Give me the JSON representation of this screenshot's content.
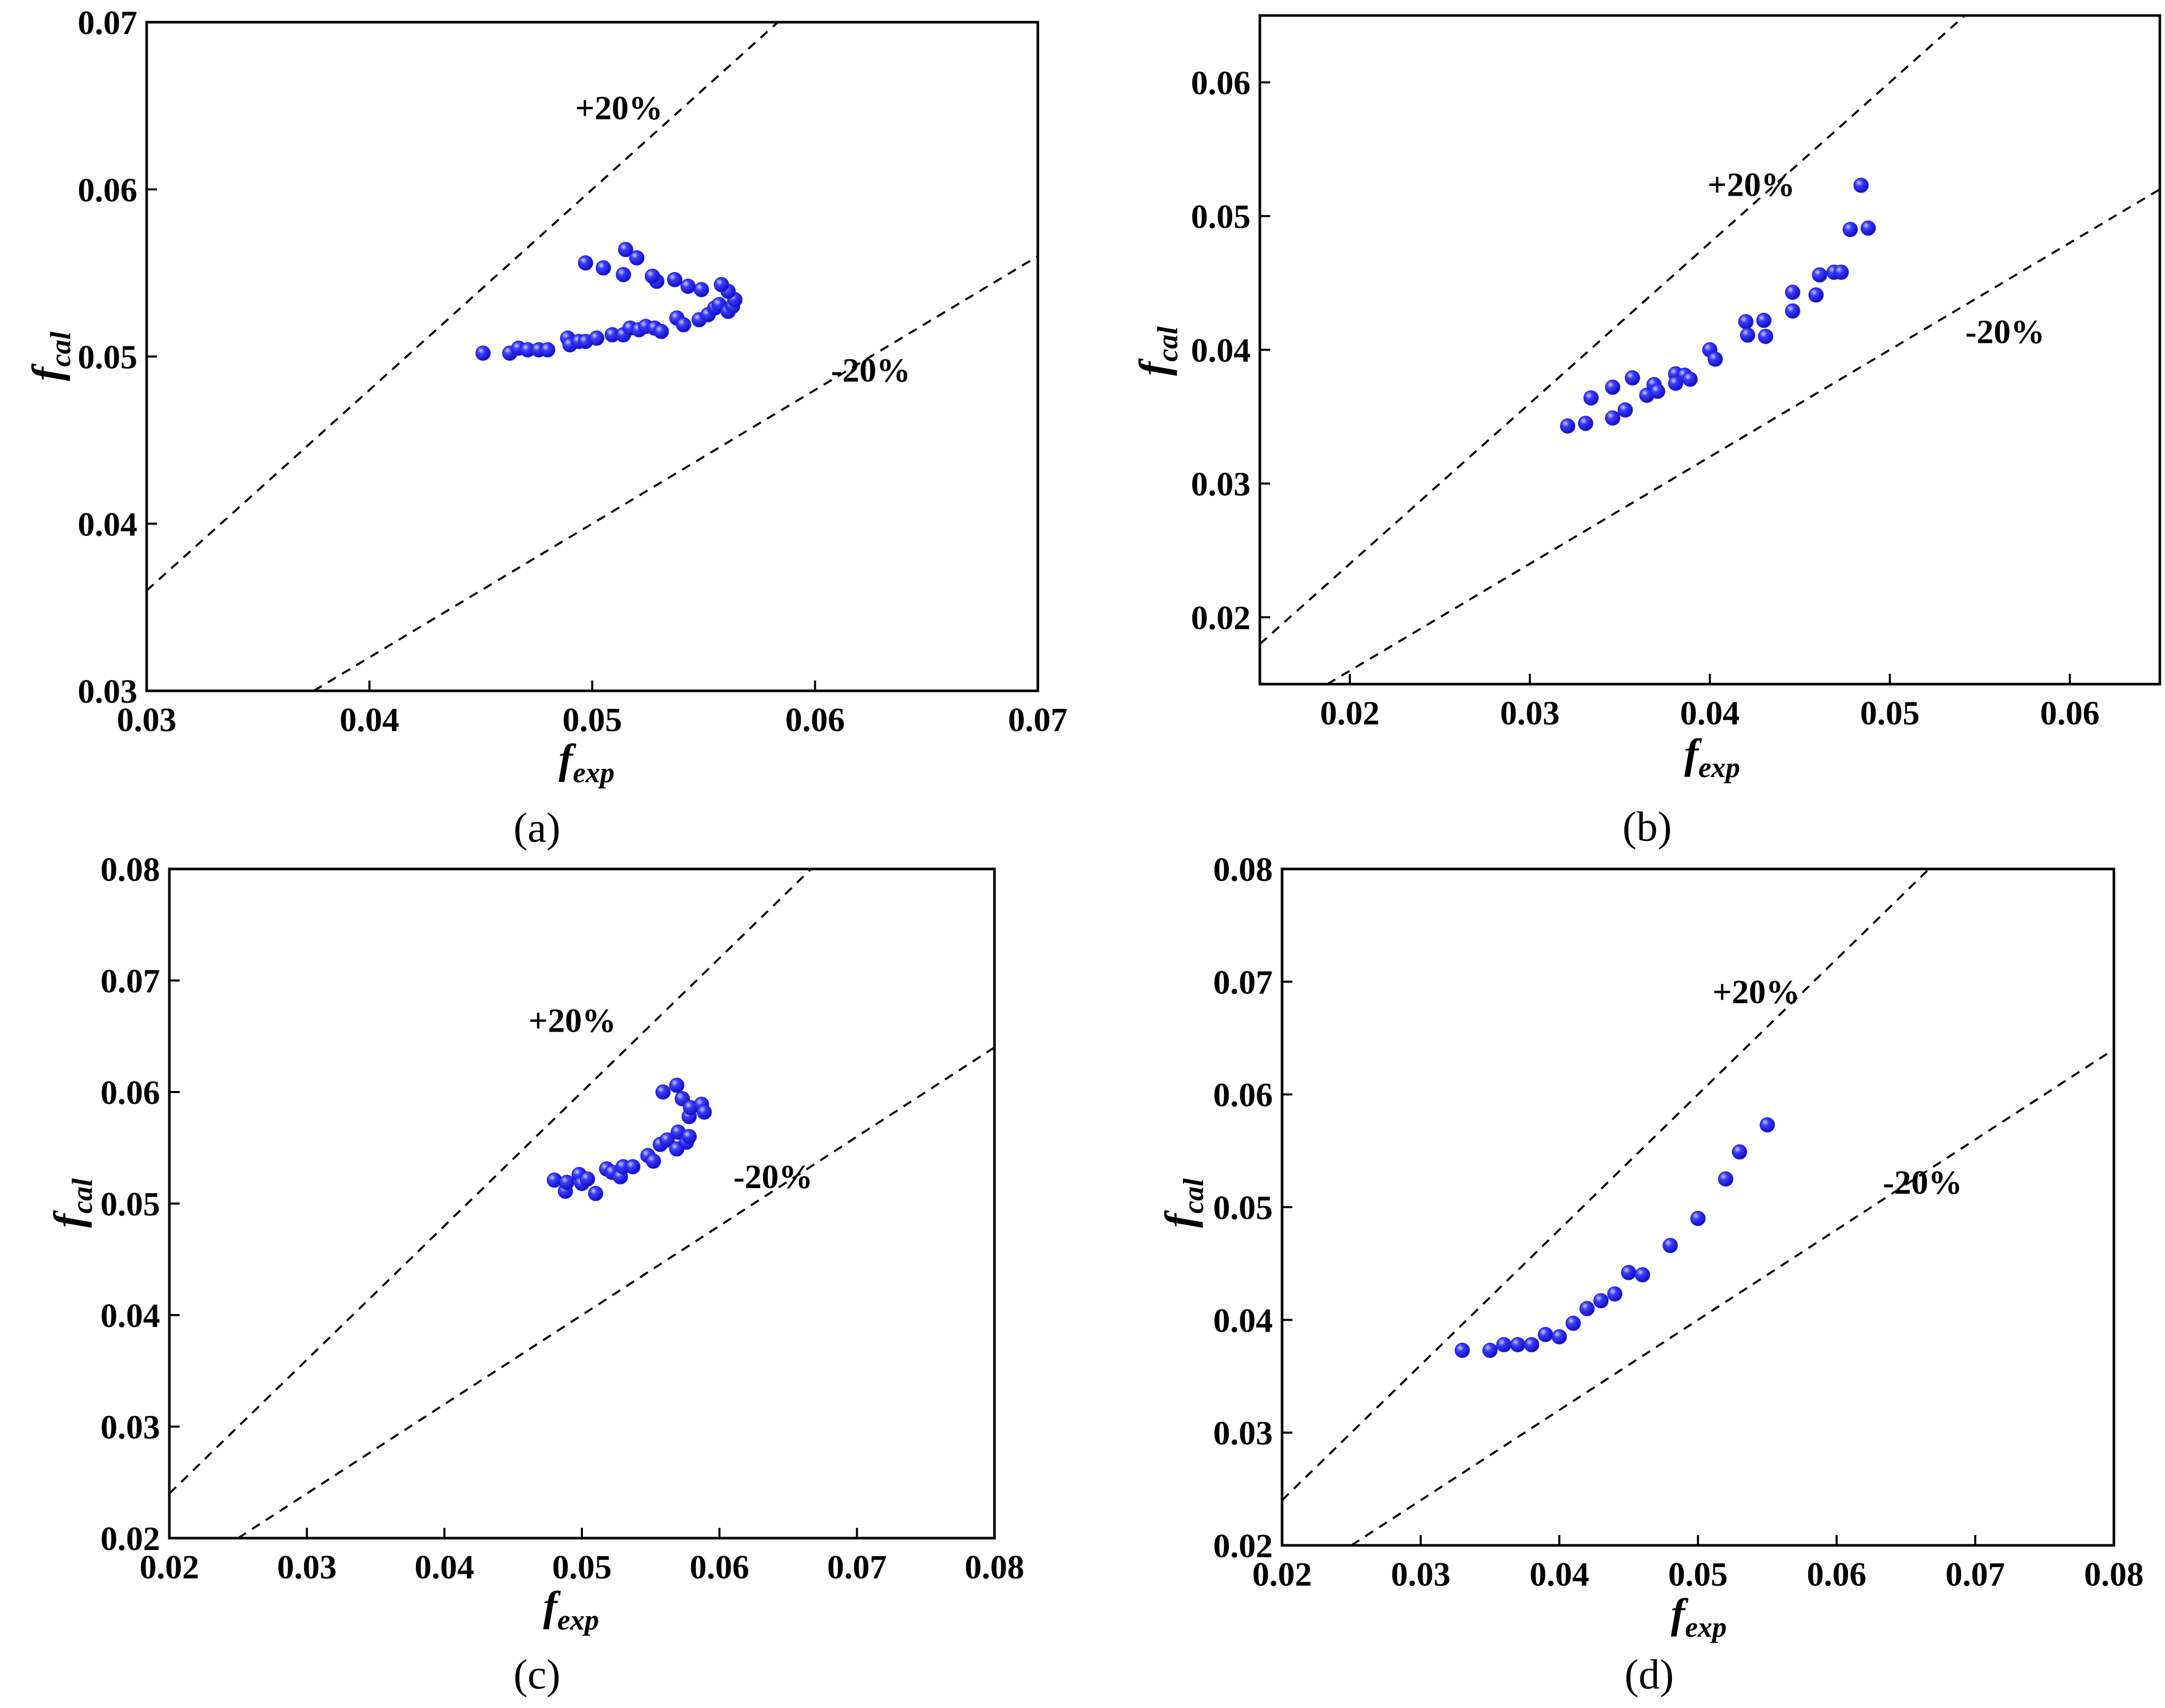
{
  "figure": {
    "panel_labels": [
      "(a)",
      "(b)",
      "(c)",
      "(d)"
    ]
  },
  "colors": {
    "points": "#1f1fe6",
    "point_highlight": "#aab2ff",
    "axes": "#000000",
    "dash": "#000000"
  },
  "chart_data": [
    {
      "type": "scatter",
      "panel": "(a)",
      "xlabel": {
        "main": "f",
        "sub": "exp"
      },
      "ylabel": {
        "main": "f",
        "sub": "cal"
      },
      "xlim": [
        0.03,
        0.07
      ],
      "ylim": [
        0.03,
        0.07
      ],
      "xticks": [
        "0.03",
        "0.04",
        "0.05",
        "0.06",
        "0.07"
      ],
      "yticks": [
        "0.03",
        "0.04",
        "0.05",
        "0.06",
        "0.07"
      ],
      "reference_lines": [
        {
          "label": "+20%",
          "slope": 1.2,
          "label_at": [
            0.0512,
            0.0642
          ]
        },
        {
          "label": "-20%",
          "slope": 0.8,
          "label_at": [
            0.0625,
            0.0485
          ]
        }
      ],
      "points": [
        [
          0.0451,
          0.0502
        ],
        [
          0.0463,
          0.0502
        ],
        [
          0.0467,
          0.0505
        ],
        [
          0.0471,
          0.0504
        ],
        [
          0.0476,
          0.0504
        ],
        [
          0.048,
          0.0504
        ],
        [
          0.0489,
          0.0511
        ],
        [
          0.049,
          0.0507
        ],
        [
          0.0494,
          0.0509
        ],
        [
          0.0497,
          0.0509
        ],
        [
          0.0502,
          0.0511
        ],
        [
          0.0509,
          0.0513
        ],
        [
          0.0514,
          0.0513
        ],
        [
          0.0517,
          0.0517
        ],
        [
          0.0521,
          0.0516
        ],
        [
          0.0524,
          0.0518
        ],
        [
          0.0528,
          0.0517
        ],
        [
          0.0531,
          0.0515
        ],
        [
          0.0538,
          0.0523
        ],
        [
          0.0541,
          0.0519
        ],
        [
          0.0548,
          0.0522
        ],
        [
          0.0552,
          0.0525
        ],
        [
          0.0555,
          0.0529
        ],
        [
          0.0557,
          0.0531
        ],
        [
          0.0561,
          0.0527
        ],
        [
          0.0563,
          0.053
        ],
        [
          0.0564,
          0.0534
        ],
        [
          0.0561,
          0.0539
        ],
        [
          0.0558,
          0.0543
        ],
        [
          0.0549,
          0.054
        ],
        [
          0.0543,
          0.0542
        ],
        [
          0.0537,
          0.0546
        ],
        [
          0.0529,
          0.0545
        ],
        [
          0.0527,
          0.0548
        ],
        [
          0.052,
          0.0559
        ],
        [
          0.0515,
          0.0564
        ],
        [
          0.0514,
          0.0549
        ],
        [
          0.0505,
          0.0553
        ],
        [
          0.0497,
          0.0556
        ]
      ]
    },
    {
      "type": "scatter",
      "panel": "(b)",
      "xlabel": {
        "main": "f",
        "sub": "exp"
      },
      "ylabel": {
        "main": "f",
        "sub": "cal"
      },
      "xlim": [
        0.015,
        0.065
      ],
      "ylim": [
        0.015,
        0.065
      ],
      "xticks": [
        "0.02",
        "0.03",
        "0.04",
        "0.05",
        "0.06"
      ],
      "yticks": [
        "0.02",
        "0.03",
        "0.04",
        "0.05",
        "0.06"
      ],
      "reference_lines": [
        {
          "label": "+20%",
          "slope": 1.2,
          "label_at": [
            0.0423,
            0.0515
          ]
        },
        {
          "label": "-20%",
          "slope": 0.8,
          "label_at": [
            0.0564,
            0.0405
          ]
        }
      ],
      "points": [
        [
          0.0321,
          0.0343
        ],
        [
          0.0331,
          0.0345
        ],
        [
          0.0334,
          0.0364
        ],
        [
          0.0346,
          0.0349
        ],
        [
          0.0346,
          0.0372
        ],
        [
          0.0353,
          0.0355
        ],
        [
          0.0357,
          0.0379
        ],
        [
          0.0365,
          0.0366
        ],
        [
          0.0369,
          0.0374
        ],
        [
          0.0371,
          0.0369
        ],
        [
          0.0381,
          0.0382
        ],
        [
          0.0381,
          0.0375
        ],
        [
          0.0386,
          0.0381
        ],
        [
          0.0389,
          0.0378
        ],
        [
          0.04,
          0.04
        ],
        [
          0.0403,
          0.0393
        ],
        [
          0.042,
          0.0421
        ],
        [
          0.0421,
          0.0411
        ],
        [
          0.043,
          0.0422
        ],
        [
          0.0431,
          0.041
        ],
        [
          0.0446,
          0.0443
        ],
        [
          0.0446,
          0.0429
        ],
        [
          0.0459,
          0.0441
        ],
        [
          0.0461,
          0.0456
        ],
        [
          0.0469,
          0.0458
        ],
        [
          0.0473,
          0.0458
        ],
        [
          0.0478,
          0.049
        ],
        [
          0.0484,
          0.0523
        ],
        [
          0.0488,
          0.0491
        ]
      ]
    },
    {
      "type": "scatter",
      "panel": "(c)",
      "xlabel": {
        "main": "f",
        "sub": "exp"
      },
      "ylabel": {
        "main": "f",
        "sub": "cal"
      },
      "xlim": [
        0.02,
        0.08
      ],
      "ylim": [
        0.02,
        0.08
      ],
      "xticks": [
        "0.02",
        "0.03",
        "0.04",
        "0.05",
        "0.06",
        "0.07",
        "0.08"
      ],
      "yticks": [
        "0.02",
        "0.03",
        "0.04",
        "0.05",
        "0.06",
        "0.07",
        "0.08"
      ],
      "reference_lines": [
        {
          "label": "+20%",
          "slope": 1.2,
          "label_at": [
            0.0493,
            0.0654
          ]
        },
        {
          "label": "-20%",
          "slope": 0.8,
          "label_at": [
            0.0639,
            0.0514
          ]
        }
      ],
      "points": [
        [
          0.048,
          0.0521
        ],
        [
          0.0488,
          0.0511
        ],
        [
          0.0489,
          0.0519
        ],
        [
          0.0498,
          0.0526
        ],
        [
          0.05,
          0.0518
        ],
        [
          0.0504,
          0.0522
        ],
        [
          0.051,
          0.0509
        ],
        [
          0.0518,
          0.0531
        ],
        [
          0.0522,
          0.0528
        ],
        [
          0.0528,
          0.0524
        ],
        [
          0.053,
          0.0533
        ],
        [
          0.0537,
          0.0533
        ],
        [
          0.0548,
          0.0543
        ],
        [
          0.0552,
          0.0538
        ],
        [
          0.0557,
          0.0553
        ],
        [
          0.0559,
          0.06
        ],
        [
          0.0562,
          0.0557
        ],
        [
          0.0569,
          0.0606
        ],
        [
          0.0569,
          0.0549
        ],
        [
          0.057,
          0.0564
        ],
        [
          0.0573,
          0.0594
        ],
        [
          0.0576,
          0.0555
        ],
        [
          0.0578,
          0.056
        ],
        [
          0.0578,
          0.0578
        ],
        [
          0.0579,
          0.0586
        ],
        [
          0.0587,
          0.0589
        ],
        [
          0.0589,
          0.0582
        ]
      ]
    },
    {
      "type": "scatter",
      "panel": "(d)",
      "xlabel": {
        "main": "f",
        "sub": "exp"
      },
      "ylabel": {
        "main": "f",
        "sub": "cal"
      },
      "xlim": [
        0.02,
        0.08
      ],
      "ylim": [
        0.02,
        0.08
      ],
      "xticks": [
        "0.02",
        "0.03",
        "0.04",
        "0.05",
        "0.06",
        "0.07",
        "0.08"
      ],
      "yticks": [
        "0.02",
        "0.03",
        "0.04",
        "0.05",
        "0.06",
        "0.07",
        "0.08"
      ],
      "reference_lines": [
        {
          "label": "+20%",
          "slope": 1.2,
          "label_at": [
            0.0542,
            0.0681
          ]
        },
        {
          "label": "-20%",
          "slope": 0.8,
          "label_at": [
            0.0662,
            0.0512
          ]
        }
      ],
      "points": [
        [
          0.033,
          0.0373
        ],
        [
          0.035,
          0.0373
        ],
        [
          0.036,
          0.0378
        ],
        [
          0.037,
          0.0378
        ],
        [
          0.038,
          0.0378
        ],
        [
          0.039,
          0.0387
        ],
        [
          0.04,
          0.0385
        ],
        [
          0.041,
          0.0397
        ],
        [
          0.042,
          0.041
        ],
        [
          0.043,
          0.0417
        ],
        [
          0.044,
          0.0423
        ],
        [
          0.045,
          0.0442
        ],
        [
          0.046,
          0.044
        ],
        [
          0.048,
          0.0466
        ],
        [
          0.05,
          0.049
        ],
        [
          0.052,
          0.0525
        ],
        [
          0.053,
          0.0549
        ],
        [
          0.055,
          0.0573
        ]
      ]
    }
  ]
}
